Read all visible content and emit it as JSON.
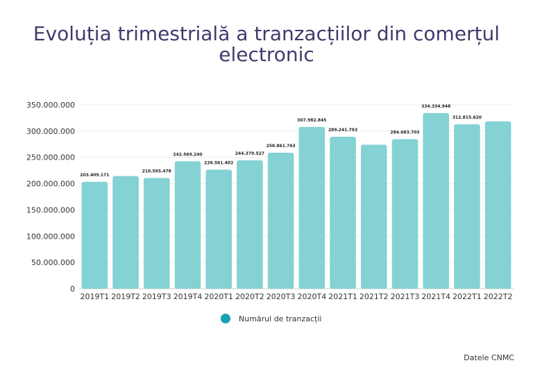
{
  "title": "Evoluția trimestrială a tranzacțiilor din comerțul electronic",
  "source": "Datele CNMC",
  "colors": {
    "bar": "#84d2d4",
    "legend_marker": "#17a3b3",
    "title": "#3f3b6b"
  },
  "chart_data": {
    "type": "bar",
    "title": "Evoluția trimestrială a tranzacțiilor din comerțul electronic",
    "xlabel": "",
    "ylabel": "",
    "ylim": [
      0,
      350000000
    ],
    "yticks": [
      0,
      50000000,
      100000000,
      150000000,
      200000000,
      250000000,
      300000000,
      350000000
    ],
    "ytick_labels": [
      "0",
      "50.000.000",
      "100.000.000",
      "150.000.000",
      "200.000.000",
      "250.000.000",
      "300.000.000",
      "350.000.000"
    ],
    "grid": true,
    "legend_position": "bottom-center",
    "categories": [
      "2019T1",
      "2019T2",
      "2019T3",
      "2019T4",
      "2020T1",
      "2020T2",
      "2020T3",
      "2020T4",
      "2021T1",
      "2021T2",
      "2021T3",
      "2021T4",
      "2022T1",
      "2022T2"
    ],
    "series": [
      {
        "name": "Numărul de tranzacții",
        "values": [
          203409171,
          214500000,
          210595478,
          242569240,
          226561402,
          244379527,
          258861763,
          307982845,
          289241793,
          274000000,
          284683703,
          334334948,
          312815620,
          318500000
        ],
        "data_labels": [
          "203.409.171",
          "",
          "210.595.478",
          "242.569.240",
          "226.561.402",
          "244.379.527",
          "258.861.763",
          "307.982.845",
          "289.241.793",
          "",
          "284.683.703",
          "334.334.948",
          "312.815.620",
          ""
        ]
      }
    ]
  }
}
